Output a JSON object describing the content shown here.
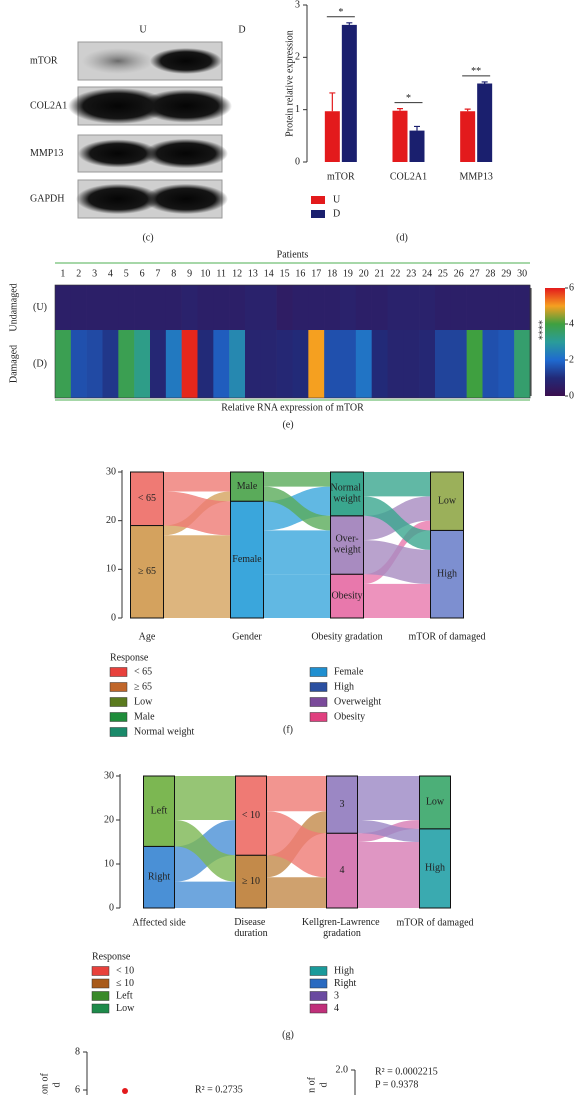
{
  "blot": {
    "lanes": [
      "U",
      "D"
    ],
    "bands": [
      "mTOR",
      "COL2A1",
      "MMP13",
      "GAPDH"
    ],
    "caption": "(c)"
  },
  "chart_data": [
    {
      "type": "bar",
      "ylabel": "Protein relative expression",
      "caption": "(d)",
      "categories": [
        "mTOR",
        "COL2A1",
        "MMP13"
      ],
      "series": [
        {
          "name": "U",
          "color": "#e31a1c",
          "values": [
            0.97,
            0.98,
            0.97
          ],
          "errors": [
            0.35,
            0.04,
            0.04
          ]
        },
        {
          "name": "D",
          "color": "#1a1f6e",
          "values": [
            2.62,
            0.6,
            1.5
          ],
          "errors": [
            0.04,
            0.08,
            0.03
          ]
        }
      ],
      "significance": [
        "*",
        "*",
        "**"
      ],
      "ylim": [
        0,
        3
      ],
      "yticks": [
        0,
        1,
        2,
        3
      ]
    },
    {
      "type": "heatmap",
      "title": "Patients",
      "xlabel": "Relative RNA expression of mTOR",
      "caption": "(e)",
      "x": [
        1,
        2,
        3,
        4,
        5,
        6,
        7,
        8,
        9,
        10,
        11,
        12,
        13,
        14,
        15,
        16,
        17,
        18,
        19,
        20,
        21,
        22,
        23,
        24,
        25,
        26,
        27,
        28,
        29,
        30
      ],
      "rows": [
        "(U)",
        "(D)"
      ],
      "row_groups": [
        "Undamaged",
        "Damaged"
      ],
      "values": [
        [
          0.6,
          0.6,
          0.6,
          0.6,
          0.6,
          0.6,
          0.6,
          0.6,
          0.7,
          0.6,
          0.6,
          0.6,
          0.7,
          0.7,
          0.5,
          0.6,
          0.6,
          0.6,
          0.7,
          0.6,
          0.6,
          0.7,
          0.7,
          0.7,
          0.6,
          0.6,
          0.6,
          0.6,
          0.6,
          0.6
        ],
        [
          3.8,
          1.6,
          1.5,
          1.2,
          3.8,
          3.2,
          0.9,
          2.3,
          5.9,
          1.0,
          1.8,
          2.6,
          0.8,
          0.8,
          0.9,
          1.0,
          5.0,
          1.6,
          1.6,
          2.2,
          1.0,
          0.8,
          0.8,
          0.9,
          1.4,
          1.4,
          4.0,
          1.6,
          1.7,
          3.5
        ]
      ],
      "colorscale": [
        "#3b0f4f",
        "#222a78",
        "#1f6ad0",
        "#2a9c9a",
        "#3fa040",
        "#f5a020",
        "#e31a1c"
      ],
      "zlim": [
        0,
        6
      ],
      "zticks": [
        0,
        2,
        4,
        6
      ],
      "annotation": "****"
    },
    {
      "type": "alluvial",
      "caption": "(f)",
      "ylim": [
        0,
        30
      ],
      "yticks": [
        0,
        10,
        20,
        30
      ],
      "axes": [
        {
          "label": "Age",
          "strata": [
            {
              "label": "≥ 65",
              "value": 19,
              "color": "#d4a25e"
            },
            {
              "label": "< 65",
              "value": 11,
              "color": "#ef7a74"
            }
          ]
        },
        {
          "label": "Gender",
          "strata": [
            {
              "label": "Female",
              "value": 24,
              "color": "#3aa6dc"
            },
            {
              "label": "Male",
              "value": 6,
              "color": "#5aab5a"
            }
          ]
        },
        {
          "label": "Obesity gradation",
          "strata": [
            {
              "label": "Obesity",
              "value": 9,
              "color": "#e878ac"
            },
            {
              "label": "Over-weight",
              "value": 12,
              "color": "#a88bc0"
            },
            {
              "label": "Normal weight",
              "value": 9,
              "color": "#3aa68e"
            }
          ]
        },
        {
          "label": "mTOR of damaged",
          "strata": [
            {
              "label": "High",
              "value": 18,
              "color": "#7d8fd0"
            },
            {
              "label": "Low",
              "value": 12,
              "color": "#9bb05a"
            }
          ]
        }
      ],
      "flows": [
        [
          {
            "from": "≥ 65",
            "to": "Female",
            "value": 17
          },
          {
            "from": "≥ 65",
            "to": "Male",
            "value": 2
          },
          {
            "from": "< 65",
            "to": "Female",
            "value": 7
          },
          {
            "from": "< 65",
            "to": "Male",
            "value": 4
          }
        ],
        [
          {
            "from": "Female",
            "to": "Obesity",
            "value": 9
          },
          {
            "from": "Female",
            "to": "Over-weight",
            "value": 9
          },
          {
            "from": "Female",
            "to": "Normal weight",
            "value": 6
          },
          {
            "from": "Male",
            "to": "Over-weight",
            "value": 3
          },
          {
            "from": "Male",
            "to": "Normal weight",
            "value": 3
          }
        ],
        [
          {
            "from": "Obesity",
            "to": "High",
            "value": 7
          },
          {
            "from": "Obesity",
            "to": "Low",
            "value": 2
          },
          {
            "from": "Over-weight",
            "to": "High",
            "value": 7
          },
          {
            "from": "Over-weight",
            "to": "Low",
            "value": 5
          },
          {
            "from": "Normal weight",
            "to": "High",
            "value": 4
          },
          {
            "from": "Normal weight",
            "to": "Low",
            "value": 5
          }
        ]
      ],
      "legend_title": "Response",
      "legend": [
        {
          "name": "< 65",
          "color": "#e8413c"
        },
        {
          "name": "≥ 65",
          "color": "#c0662a"
        },
        {
          "name": "Low",
          "color": "#5a7a1e"
        },
        {
          "name": "Male",
          "color": "#1e8c3a"
        },
        {
          "name": "Normal weight",
          "color": "#1a8a6a"
        },
        {
          "name": "Female",
          "color": "#1f8fd0"
        },
        {
          "name": "High",
          "color": "#2a4fa0"
        },
        {
          "name": "Overweight",
          "color": "#7a4a9a"
        },
        {
          "name": "Obesity",
          "color": "#e0407f"
        }
      ]
    },
    {
      "type": "alluvial",
      "caption": "(g)",
      "ylim": [
        0,
        30
      ],
      "yticks": [
        0,
        10,
        20,
        30
      ],
      "axes": [
        {
          "label": "Affected side",
          "strata": [
            {
              "label": "Right",
              "value": 14,
              "color": "#4a90d6"
            },
            {
              "label": "Left",
              "value": 16,
              "color": "#7cb752"
            }
          ]
        },
        {
          "label": "Disease duration",
          "strata": [
            {
              "label": "≥ 10",
              "value": 12,
              "color": "#c38a4a"
            },
            {
              "label": "< 10",
              "value": 18,
              "color": "#ef7a74"
            }
          ]
        },
        {
          "label": "Kellgren-Lawrence gradation",
          "strata": [
            {
              "label": "4",
              "value": 17,
              "color": "#d77cb4"
            },
            {
              "label": "3",
              "value": 13,
              "color": "#9b87c4"
            }
          ]
        },
        {
          "label": "mTOR of damaged",
          "strata": [
            {
              "label": "High",
              "value": 18,
              "color": "#3aaab0"
            },
            {
              "label": "Low",
              "value": 12,
              "color": "#4caf78"
            }
          ]
        }
      ],
      "flows": [
        [
          {
            "from": "Right",
            "to": "≥ 10",
            "value": 6
          },
          {
            "from": "Right",
            "to": "< 10",
            "value": 8
          },
          {
            "from": "Left",
            "to": "≥ 10",
            "value": 6
          },
          {
            "from": "Left",
            "to": "< 10",
            "value": 10
          }
        ],
        [
          {
            "from": "≥ 10",
            "to": "4",
            "value": 7
          },
          {
            "from": "≥ 10",
            "to": "3",
            "value": 5
          },
          {
            "from": "< 10",
            "to": "4",
            "value": 10
          },
          {
            "from": "< 10",
            "to": "3",
            "value": 8
          }
        ],
        [
          {
            "from": "4",
            "to": "High",
            "value": 15
          },
          {
            "from": "4",
            "to": "Low",
            "value": 2
          },
          {
            "from": "3",
            "to": "High",
            "value": 3
          },
          {
            "from": "3",
            "to": "Low",
            "value": 10
          }
        ]
      ],
      "legend_title": "Response",
      "legend": [
        {
          "name": "< 10",
          "color": "#e8413c"
        },
        {
          "name": "≤ 10",
          "color": "#a85a1a"
        },
        {
          "name": "Left",
          "color": "#3a8a2a"
        },
        {
          "name": "Low",
          "color": "#1e8a4a"
        },
        {
          "name": "High",
          "color": "#1a9a9a"
        },
        {
          "name": "Right",
          "color": "#2a6ac0"
        },
        {
          "name": "3",
          "color": "#6a4aa0"
        },
        {
          "name": "4",
          "color": "#c0307a"
        }
      ]
    },
    {
      "type": "scatter",
      "ylabel": [
        "ion of",
        "d"
      ],
      "values": [
        5.95
      ],
      "color": "#e31a1c",
      "ylim": [
        0,
        8
      ],
      "yticks": [
        6,
        8
      ],
      "annotations": [
        "R² = 0.2735"
      ]
    },
    {
      "type": "scatter",
      "ylabel": [
        "n of",
        "d"
      ],
      "values": [],
      "ylim": [
        0,
        2
      ],
      "yticks": [
        {
          "value": 2,
          "label": "2.0"
        }
      ],
      "annotations": [
        "R² = 0.0002215",
        "P = 0.9378"
      ]
    }
  ]
}
